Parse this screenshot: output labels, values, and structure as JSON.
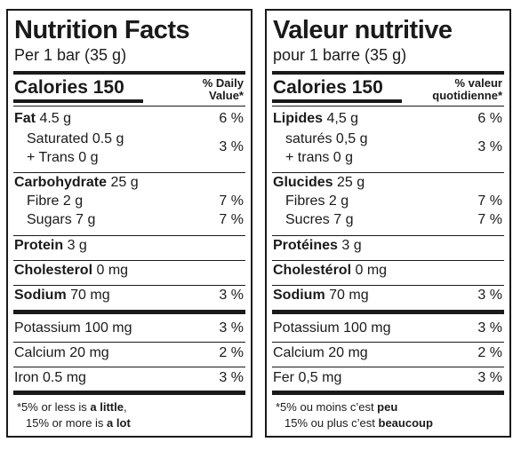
{
  "en": {
    "title": "Nutrition Facts",
    "serving": "Per 1 bar (35 g)",
    "calories_label": "Calories",
    "calories_value": "150",
    "dv_header_line1": "% Daily",
    "dv_header_line2": "Value*",
    "fat": {
      "label": "Fat",
      "amount": "4.5 g",
      "dv": "6 %"
    },
    "saturated": {
      "label": "Saturated 0.5 g"
    },
    "trans": {
      "label": "+ Trans 0 g"
    },
    "satTrans_dv": "3 %",
    "carbohydrate": {
      "label": "Carbohydrate",
      "amount": "25 g"
    },
    "fibre": {
      "label": "Fibre 2 g",
      "dv": "7 %"
    },
    "sugars": {
      "label": "Sugars 7 g",
      "dv": "7 %"
    },
    "protein": {
      "label": "Protein",
      "amount": "3 g"
    },
    "cholesterol": {
      "label": "Cholesterol",
      "amount": "0 mg"
    },
    "sodium": {
      "label": "Sodium",
      "amount": "70 mg",
      "dv": "3 %"
    },
    "potassium": {
      "label": "Potassium 100 mg",
      "dv": "3 %"
    },
    "calcium": {
      "label": "Calcium 20 mg",
      "dv": "2 %"
    },
    "iron": {
      "label": "Iron 0.5 mg",
      "dv": "3 %"
    },
    "foot_1a": "*5% or less is ",
    "foot_1b": "a little",
    "foot_1c": ",",
    "foot_2a": "15% or more is ",
    "foot_2b": "a lot"
  },
  "fr": {
    "title": "Valeur nutritive",
    "serving": "pour 1 barre (35 g)",
    "calories_label": "Calories",
    "calories_value": "150",
    "dv_header_line1": "% valeur",
    "dv_header_line2": "quotidienne*",
    "fat": {
      "label": "Lipides",
      "amount": "4,5 g",
      "dv": "6 %"
    },
    "saturated": {
      "label": "saturés 0,5 g"
    },
    "trans": {
      "label": "+ trans 0 g"
    },
    "satTrans_dv": "3 %",
    "carbohydrate": {
      "label": "Glucides",
      "amount": "25 g"
    },
    "fibre": {
      "label": "Fibres 2 g",
      "dv": "7 %"
    },
    "sugars": {
      "label": "Sucres 7 g",
      "dv": "7 %"
    },
    "protein": {
      "label": "Protéines",
      "amount": "3 g"
    },
    "cholesterol": {
      "label": "Cholestérol",
      "amount": "0 mg"
    },
    "sodium": {
      "label": "Sodium",
      "amount": "70 mg",
      "dv": "3 %"
    },
    "potassium": {
      "label": "Potassium 100 mg",
      "dv": "3 %"
    },
    "calcium": {
      "label": "Calcium 20 mg",
      "dv": "2 %"
    },
    "iron": {
      "label": "Fer 0,5 mg",
      "dv": "3 %"
    },
    "foot_1a": "*5% ou moins c’est ",
    "foot_1b": "peu",
    "foot_1c": "",
    "foot_2a": "15% ou plus c’est ",
    "foot_2b": "beaucoup"
  }
}
